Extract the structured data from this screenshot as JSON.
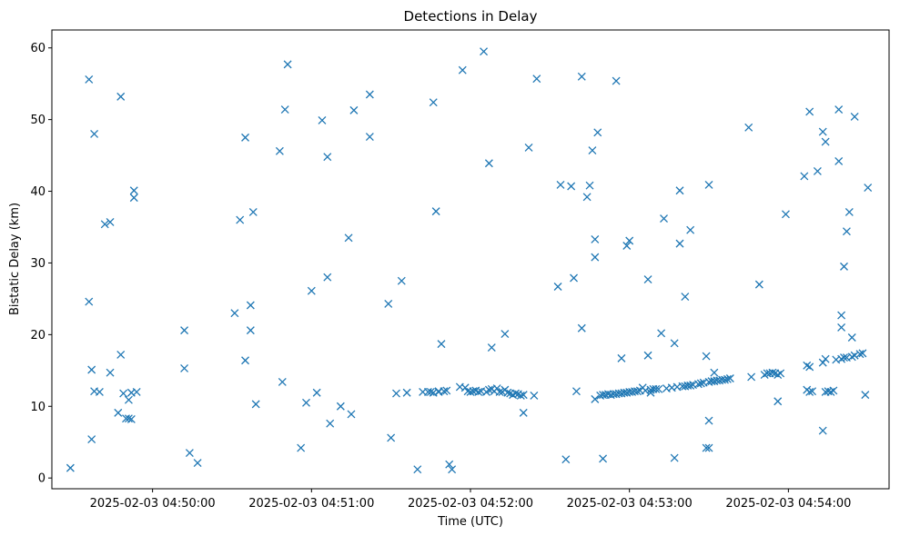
{
  "chart_data": {
    "type": "scatter",
    "title": "Detections in Delay",
    "xlabel": "Time (UTC)",
    "ylabel": "Bistatic Delay (km)",
    "date": "2025-02-03",
    "x_unit": "time of day (UTC)",
    "xlim": [
      "04:49:22",
      "04:54:38"
    ],
    "ylim": [
      -1.5,
      62.5
    ],
    "x_ticks": [
      "2025-02-03 04:50:00",
      "2025-02-03 04:51:00",
      "2025-02-03 04:52:00",
      "2025-02-03 04:53:00",
      "2025-02-03 04:54:00"
    ],
    "y_ticks": [
      0,
      10,
      20,
      30,
      40,
      50,
      60
    ],
    "grid": false,
    "marker": "x",
    "color": "#1f77b4",
    "series": [
      {
        "points": [
          [
            "04:49:29",
            1.4
          ],
          [
            "04:49:36",
            55.6
          ],
          [
            "04:49:36",
            24.6
          ],
          [
            "04:49:37",
            5.4
          ],
          [
            "04:49:37",
            15.1
          ],
          [
            "04:49:38",
            48.0
          ],
          [
            "04:49:38",
            12.1
          ],
          [
            "04:49:40",
            12.0
          ],
          [
            "04:49:42",
            35.4
          ],
          [
            "04:49:44",
            35.7
          ],
          [
            "04:49:44",
            14.7
          ],
          [
            "04:49:47",
            9.1
          ],
          [
            "04:49:48",
            17.2
          ],
          [
            "04:49:48",
            53.2
          ],
          [
            "04:49:49",
            11.8
          ],
          [
            "04:49:50",
            8.3
          ],
          [
            "04:49:51",
            8.3
          ],
          [
            "04:49:51",
            10.9
          ],
          [
            "04:49:52",
            11.9
          ],
          [
            "04:49:52",
            8.2
          ],
          [
            "04:49:53",
            40.1
          ],
          [
            "04:49:53",
            39.1
          ],
          [
            "04:49:54",
            12.0
          ],
          [
            "04:50:12",
            20.6
          ],
          [
            "04:50:12",
            15.3
          ],
          [
            "04:50:14",
            3.5
          ],
          [
            "04:50:17",
            2.1
          ],
          [
            "04:50:31",
            23.0
          ],
          [
            "04:50:33",
            36.0
          ],
          [
            "04:50:35",
            47.5
          ],
          [
            "04:50:35",
            16.4
          ],
          [
            "04:50:37",
            24.1
          ],
          [
            "04:50:37",
            20.6
          ],
          [
            "04:50:38",
            37.1
          ],
          [
            "04:50:39",
            10.3
          ],
          [
            "04:50:48",
            45.6
          ],
          [
            "04:50:49",
            13.4
          ],
          [
            "04:50:50",
            51.4
          ],
          [
            "04:50:51",
            57.7
          ],
          [
            "04:50:56",
            4.2
          ],
          [
            "04:50:58",
            10.5
          ],
          [
            "04:51:00",
            26.1
          ],
          [
            "04:51:02",
            11.9
          ],
          [
            "04:51:04",
            49.9
          ],
          [
            "04:51:06",
            28.0
          ],
          [
            "04:51:06",
            44.8
          ],
          [
            "04:51:07",
            7.6
          ],
          [
            "04:51:11",
            10.0
          ],
          [
            "04:51:14",
            33.5
          ],
          [
            "04:51:15",
            8.9
          ],
          [
            "04:51:16",
            51.3
          ],
          [
            "04:51:22",
            53.5
          ],
          [
            "04:51:22",
            47.6
          ],
          [
            "04:51:29",
            24.3
          ],
          [
            "04:51:30",
            5.6
          ],
          [
            "04:51:32",
            11.8
          ],
          [
            "04:51:34",
            27.5
          ],
          [
            "04:51:36",
            11.9
          ],
          [
            "04:51:40",
            1.2
          ],
          [
            "04:51:42",
            12.0
          ],
          [
            "04:51:44",
            12.0
          ],
          [
            "04:51:45",
            12.0
          ],
          [
            "04:51:46",
            52.4
          ],
          [
            "04:51:46",
            11.9
          ],
          [
            "04:51:47",
            37.2
          ],
          [
            "04:51:48",
            12.1
          ],
          [
            "04:51:48",
            12.0
          ],
          [
            "04:51:49",
            18.7
          ],
          [
            "04:51:50",
            12.1
          ],
          [
            "04:51:51",
            12.2
          ],
          [
            "04:51:52",
            1.9
          ],
          [
            "04:51:53",
            1.2
          ],
          [
            "04:51:56",
            12.7
          ],
          [
            "04:51:57",
            56.9
          ],
          [
            "04:51:58",
            12.6
          ],
          [
            "04:51:59",
            12.1
          ],
          [
            "04:52:00",
            12.0
          ],
          [
            "04:52:01",
            12.1
          ],
          [
            "04:52:02",
            12.2
          ],
          [
            "04:52:03",
            12.0
          ],
          [
            "04:52:04",
            12.1
          ],
          [
            "04:52:05",
            59.5
          ],
          [
            "04:52:06",
            12.0
          ],
          [
            "04:52:07",
            43.9
          ],
          [
            "04:52:07",
            12.3
          ],
          [
            "04:52:08",
            18.2
          ],
          [
            "04:52:08",
            12.4
          ],
          [
            "04:52:09",
            12.1
          ],
          [
            "04:52:10",
            12.5
          ],
          [
            "04:52:11",
            12.0
          ],
          [
            "04:52:12",
            12.0
          ],
          [
            "04:52:13",
            20.1
          ],
          [
            "04:52:13",
            12.3
          ],
          [
            "04:52:14",
            11.9
          ],
          [
            "04:52:15",
            11.8
          ],
          [
            "04:52:16",
            11.6
          ],
          [
            "04:52:17",
            11.8
          ],
          [
            "04:52:18",
            11.7
          ],
          [
            "04:52:19",
            11.5
          ],
          [
            "04:52:20",
            9.1
          ],
          [
            "04:52:20",
            11.6
          ],
          [
            "04:52:22",
            46.1
          ],
          [
            "04:52:24",
            11.5
          ],
          [
            "04:52:25",
            55.7
          ],
          [
            "04:52:33",
            26.7
          ],
          [
            "04:52:34",
            40.9
          ],
          [
            "04:52:36",
            2.6
          ],
          [
            "04:52:38",
            40.7
          ],
          [
            "04:52:39",
            27.9
          ],
          [
            "04:52:40",
            12.1
          ],
          [
            "04:52:42",
            56.0
          ],
          [
            "04:52:42",
            20.9
          ],
          [
            "04:52:44",
            39.2
          ],
          [
            "04:52:45",
            40.8
          ],
          [
            "04:52:46",
            45.7
          ],
          [
            "04:52:47",
            11.0
          ],
          [
            "04:52:47",
            33.3
          ],
          [
            "04:52:47",
            30.8
          ],
          [
            "04:52:48",
            48.2
          ],
          [
            "04:52:49",
            11.5
          ],
          [
            "04:52:50",
            2.7
          ],
          [
            "04:52:50",
            11.6
          ],
          [
            "04:52:51",
            11.6
          ],
          [
            "04:52:52",
            11.7
          ],
          [
            "04:52:53",
            11.6
          ],
          [
            "04:52:54",
            11.7
          ],
          [
            "04:52:55",
            11.7
          ],
          [
            "04:52:55",
            55.4
          ],
          [
            "04:52:56",
            11.8
          ],
          [
            "04:52:57",
            16.7
          ],
          [
            "04:52:57",
            11.8
          ],
          [
            "04:52:58",
            11.9
          ],
          [
            "04:52:59",
            32.4
          ],
          [
            "04:52:59",
            11.9
          ],
          [
            "04:53:00",
            33.1
          ],
          [
            "04:53:00",
            12.0
          ],
          [
            "04:53:01",
            12.0
          ],
          [
            "04:53:02",
            12.1
          ],
          [
            "04:53:03",
            12.1
          ],
          [
            "04:53:04",
            12.2
          ],
          [
            "04:53:05",
            12.6
          ],
          [
            "04:53:06",
            12.2
          ],
          [
            "04:53:07",
            27.7
          ],
          [
            "04:53:07",
            17.1
          ],
          [
            "04:53:08",
            12.3
          ],
          [
            "04:53:08",
            11.9
          ],
          [
            "04:53:09",
            12.4
          ],
          [
            "04:53:10",
            12.4
          ],
          [
            "04:53:11",
            12.4
          ],
          [
            "04:53:12",
            20.2
          ],
          [
            "04:53:13",
            36.2
          ],
          [
            "04:53:14",
            12.5
          ],
          [
            "04:53:16",
            12.6
          ],
          [
            "04:53:17",
            18.8
          ],
          [
            "04:53:17",
            2.8
          ],
          [
            "04:53:18",
            12.7
          ],
          [
            "04:53:19",
            40.1
          ],
          [
            "04:53:19",
            32.7
          ],
          [
            "04:53:20",
            12.8
          ],
          [
            "04:53:21",
            25.3
          ],
          [
            "04:53:21",
            12.8
          ],
          [
            "04:53:22",
            12.9
          ],
          [
            "04:53:23",
            34.6
          ],
          [
            "04:53:23",
            12.9
          ],
          [
            "04:53:24",
            13.0
          ],
          [
            "04:53:26",
            13.1
          ],
          [
            "04:53:27",
            13.2
          ],
          [
            "04:53:28",
            13.3
          ],
          [
            "04:53:29",
            17.0
          ],
          [
            "04:53:29",
            4.2
          ],
          [
            "04:53:30",
            13.4
          ],
          [
            "04:53:30",
            4.2
          ],
          [
            "04:53:30",
            8.0
          ],
          [
            "04:53:30",
            40.9
          ],
          [
            "04:53:31",
            13.5
          ],
          [
            "04:53:32",
            14.7
          ],
          [
            "04:53:32",
            13.5
          ],
          [
            "04:53:33",
            13.6
          ],
          [
            "04:53:34",
            13.6
          ],
          [
            "04:53:35",
            13.7
          ],
          [
            "04:53:36",
            13.7
          ],
          [
            "04:53:37",
            13.8
          ],
          [
            "04:53:38",
            13.9
          ],
          [
            "04:53:45",
            48.9
          ],
          [
            "04:53:46",
            14.1
          ],
          [
            "04:53:49",
            27.0
          ],
          [
            "04:53:51",
            14.4
          ],
          [
            "04:53:52",
            14.6
          ],
          [
            "04:53:53",
            14.6
          ],
          [
            "04:53:54",
            14.7
          ],
          [
            "04:53:55",
            14.6
          ],
          [
            "04:53:56",
            10.7
          ],
          [
            "04:53:56",
            14.4
          ],
          [
            "04:53:57",
            14.6
          ],
          [
            "04:53:59",
            36.8
          ],
          [
            "04:54:06",
            42.1
          ],
          [
            "04:54:07",
            15.7
          ],
          [
            "04:54:07",
            12.3
          ],
          [
            "04:54:08",
            15.5
          ],
          [
            "04:54:08",
            12.0
          ],
          [
            "04:54:08",
            51.1
          ],
          [
            "04:54:09",
            12.1
          ],
          [
            "04:54:11",
            42.8
          ],
          [
            "04:54:13",
            6.6
          ],
          [
            "04:54:13",
            48.3
          ],
          [
            "04:54:13",
            16.1
          ],
          [
            "04:54:14",
            16.6
          ],
          [
            "04:54:14",
            12.0
          ],
          [
            "04:54:14",
            46.9
          ],
          [
            "04:54:15",
            12.1
          ],
          [
            "04:54:16",
            12.0
          ],
          [
            "04:54:17",
            12.2
          ],
          [
            "04:54:18",
            16.5
          ],
          [
            "04:54:19",
            44.2
          ],
          [
            "04:54:19",
            51.4
          ],
          [
            "04:54:20",
            22.7
          ],
          [
            "04:54:20",
            21.0
          ],
          [
            "04:54:20",
            16.6
          ],
          [
            "04:54:21",
            16.8
          ],
          [
            "04:54:21",
            29.5
          ],
          [
            "04:54:22",
            34.4
          ],
          [
            "04:54:22",
            16.8
          ],
          [
            "04:54:23",
            37.1
          ],
          [
            "04:54:24",
            16.9
          ],
          [
            "04:54:24",
            19.6
          ],
          [
            "04:54:25",
            50.4
          ],
          [
            "04:54:25",
            17.1
          ],
          [
            "04:54:27",
            17.3
          ],
          [
            "04:54:28",
            17.4
          ],
          [
            "04:54:29",
            11.6
          ],
          [
            "04:54:30",
            40.5
          ]
        ]
      }
    ]
  }
}
